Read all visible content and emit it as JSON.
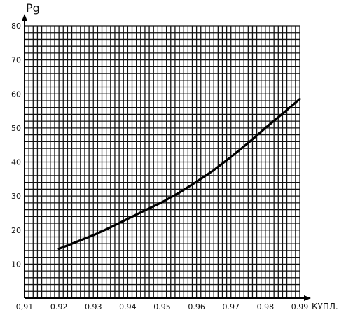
{
  "chart_data": {
    "type": "line",
    "title": "",
    "xlabel": "КУПЛ.",
    "ylabel": "Pg",
    "xlim": [
      0.91,
      0.99
    ],
    "ylim": [
      0,
      80
    ],
    "grid": true,
    "x_ticks": [
      "0,91",
      "0.92",
      "0.93",
      "0.94",
      "0.95",
      "0.96",
      "0.97",
      "0.98",
      "0.99"
    ],
    "y_ticks": [
      "10",
      "20",
      "30",
      "40",
      "50",
      "60",
      "70",
      "80"
    ],
    "series": [
      {
        "x": [
          0.92,
          0.925,
          0.93,
          0.935,
          0.94,
          0.945,
          0.95,
          0.955,
          0.96,
          0.965,
          0.97,
          0.975,
          0.98,
          0.985,
          0.99
        ],
        "y": [
          14.5,
          16.5,
          18.5,
          20.8,
          23.3,
          25.8,
          28.2,
          31.0,
          34.2,
          37.6,
          41.5,
          45.6,
          50.0,
          54.2,
          58.5
        ]
      }
    ]
  }
}
